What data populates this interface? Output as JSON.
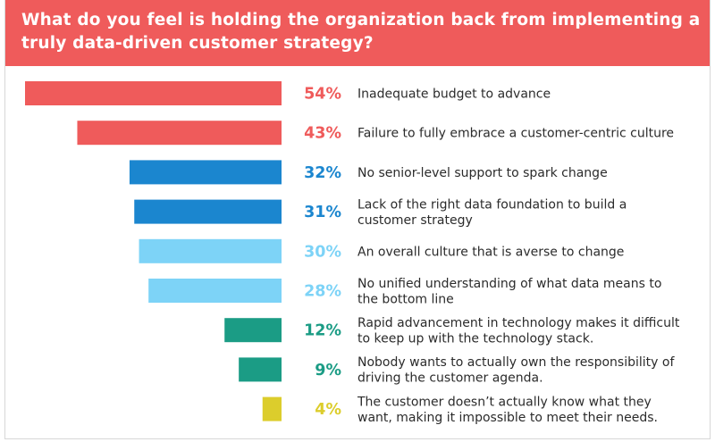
{
  "header": {
    "title": "What do you feel is holding the organization back from implementing a truly data-driven customer strategy?"
  },
  "colors": {
    "header_bg": "#ef5b5b",
    "red": "#ef5b5b",
    "blue": "#1b86cf",
    "light_blue": "#7dd3f7",
    "teal": "#1b9c85",
    "yellow": "#dccd2c",
    "text": "#2b2b2b"
  },
  "chart_data": {
    "type": "bar",
    "orientation": "horizontal",
    "title": "What do you feel is holding the organization back from implementing a truly data-driven customer strategy?",
    "unit": "%",
    "xlim": [
      0,
      54
    ],
    "items": [
      {
        "value": 54,
        "label": "54%",
        "lines": [
          "Inadequate budget to advance"
        ],
        "color_key": "red"
      },
      {
        "value": 43,
        "label": "43%",
        "lines": [
          "Failure to fully embrace a customer-centric culture"
        ],
        "color_key": "red"
      },
      {
        "value": 32,
        "label": "32%",
        "lines": [
          "No senior-level support to spark change"
        ],
        "color_key": "blue"
      },
      {
        "value": 31,
        "label": "31%",
        "lines": [
          "Lack of the right data foundation to build a",
          "customer strategy"
        ],
        "color_key": "blue"
      },
      {
        "value": 30,
        "label": "30%",
        "lines": [
          "An overall culture that is averse to change"
        ],
        "color_key": "light_blue"
      },
      {
        "value": 28,
        "label": "28%",
        "lines": [
          "No unified understanding of what data means to",
          "the bottom line"
        ],
        "color_key": "light_blue"
      },
      {
        "value": 12,
        "label": "12%",
        "lines": [
          "Rapid advancement in technology makes it difficult",
          "to keep up with the technology stack."
        ],
        "color_key": "teal"
      },
      {
        "value": 9,
        "label": "9%",
        "lines": [
          "Nobody wants to actually own the responsibility of",
          "driving the customer agenda."
        ],
        "color_key": "teal"
      },
      {
        "value": 4,
        "label": "4%",
        "lines": [
          "The customer doesn’t actually know what they",
          "want, making it impossible to meet their needs."
        ],
        "color_key": "yellow"
      }
    ]
  }
}
